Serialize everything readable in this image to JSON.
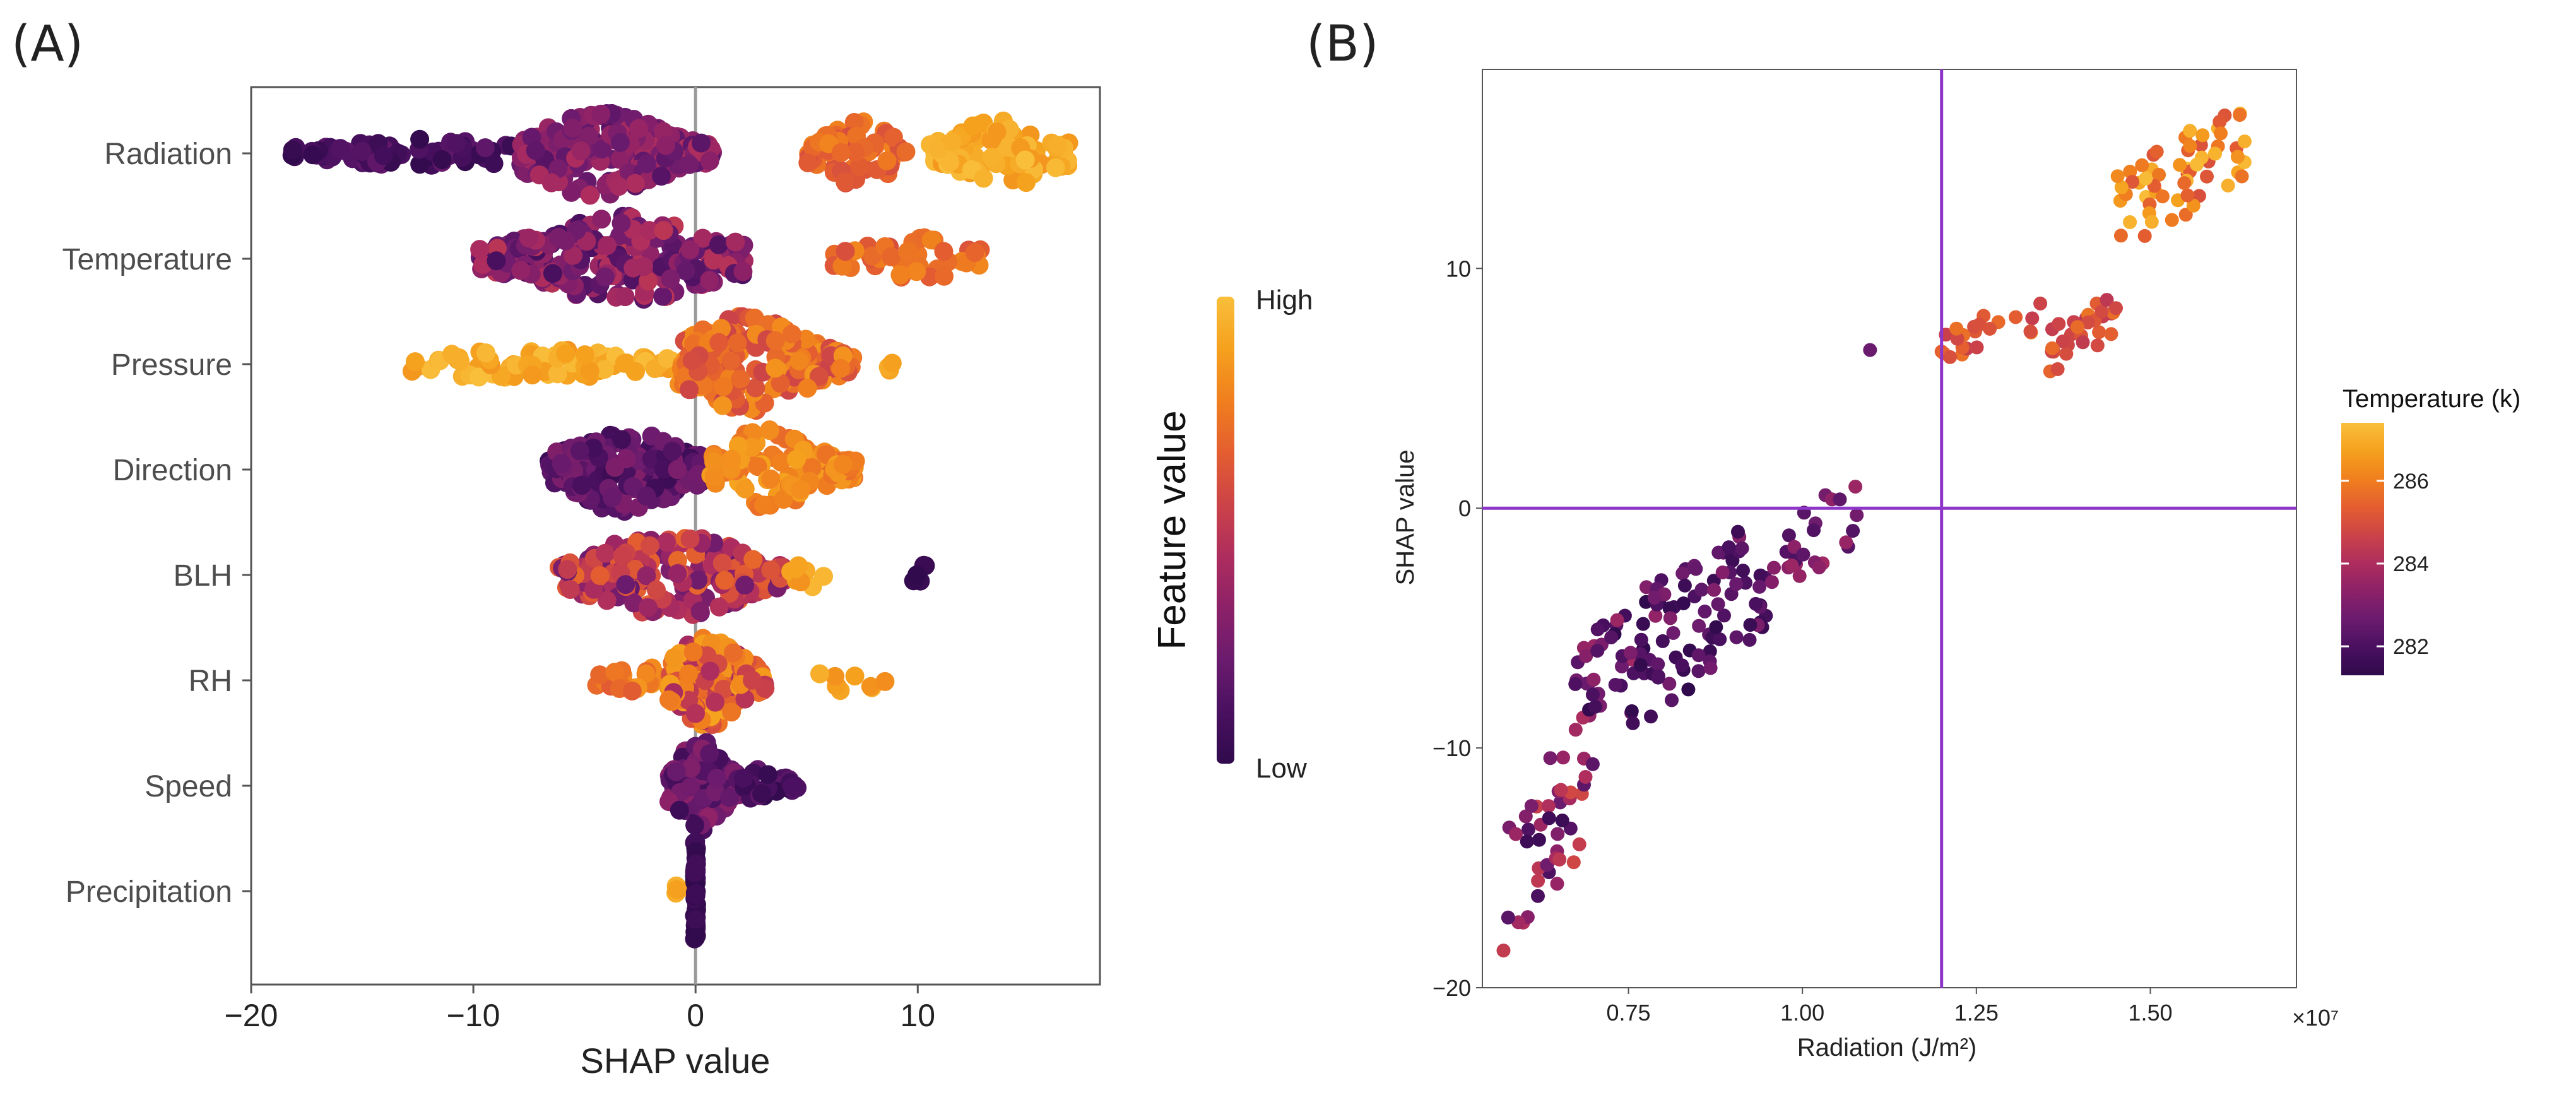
{
  "panels": {
    "a_label": "(A)",
    "b_label": "(B)"
  },
  "colors": {
    "ramp": [
      "#300a4c",
      "#4a1060",
      "#6b1b6e",
      "#8c2168",
      "#ae2d5e",
      "#cc4348",
      "#e45e30",
      "#f07f1e",
      "#f5a11e",
      "#f9bf3b"
    ],
    "guide_line": "#8d36c9",
    "zero_line": "#9a9a9a",
    "frame": "#555555"
  },
  "colorbar_a": {
    "title": "Feature value",
    "high": "High",
    "low": "Low"
  },
  "legend_b": {
    "title": "Temperature (k)",
    "ticks": [
      282,
      284,
      286
    ],
    "range": [
      281.3,
      287.4
    ]
  },
  "chart_data": [
    {
      "type": "scatter",
      "subtype": "beeswarm",
      "title": "",
      "xlabel": "SHAP value",
      "ylabel": "",
      "xlim": [
        -20,
        18.2
      ],
      "xticks": [
        -20,
        -10,
        0,
        10
      ],
      "xtick_labels": [
        "−20",
        "−10",
        "0",
        "10"
      ],
      "features": [
        "Radiation",
        "Temperature",
        "Pressure",
        "Direction",
        "BLH",
        "RH",
        "Speed",
        "Precipitation"
      ],
      "zero_line": true,
      "series": [
        {
          "feature": "Radiation",
          "clusters": [
            {
              "from": -18.2,
              "to": -8.2,
              "center": -12,
              "spread": 0.18,
              "color_from": 0.0,
              "color_to": 0.2,
              "count": 70
            },
            {
              "from": -7.9,
              "to": 0.8,
              "center": -4.5,
              "spread": 0.75,
              "color_from": 0.15,
              "color_to": 0.45,
              "count": 230
            },
            {
              "from": 5.0,
              "to": 9.5,
              "center": 7.3,
              "spread": 0.55,
              "color_from": 0.6,
              "color_to": 0.8,
              "count": 70
            },
            {
              "from": 10.5,
              "to": 16.8,
              "center": 13.8,
              "spread": 0.6,
              "color_from": 0.85,
              "color_to": 1.0,
              "count": 90
            }
          ]
        },
        {
          "feature": "Temperature",
          "clusters": [
            {
              "from": -9.8,
              "to": 2.2,
              "center": -3.2,
              "spread": 0.75,
              "color_from": 0.1,
              "color_to": 0.5,
              "count": 240
            },
            {
              "from": 6.2,
              "to": 13.0,
              "center": 10.0,
              "spread": 0.35,
              "color_from": 0.6,
              "color_to": 0.8,
              "count": 45
            }
          ]
        },
        {
          "feature": "Pressure",
          "clusters": [
            {
              "from": -13.0,
              "to": -0.8,
              "center": -8,
              "spread": 0.22,
              "color_from": 0.85,
              "color_to": 1.0,
              "count": 80
            },
            {
              "from": -0.8,
              "to": 7.2,
              "center": 2.3,
              "spread": 0.85,
              "color_from": 0.55,
              "color_to": 0.85,
              "count": 220
            },
            {
              "from": 8.5,
              "to": 9.2,
              "center": 8.8,
              "spread": 0.05,
              "color_from": 0.85,
              "color_to": 0.95,
              "count": 3
            }
          ]
        },
        {
          "feature": "Direction",
          "clusters": [
            {
              "from": -6.6,
              "to": 0.6,
              "center": -3.2,
              "spread": 0.75,
              "color_from": 0.05,
              "color_to": 0.3,
              "count": 190
            },
            {
              "from": 0.6,
              "to": 7.2,
              "center": 3.2,
              "spread": 0.7,
              "color_from": 0.7,
              "color_to": 0.9,
              "count": 110
            }
          ]
        },
        {
          "feature": "BLH",
          "clusters": [
            {
              "from": -6.2,
              "to": 4.0,
              "center": -1.2,
              "spread": 0.75,
              "color_from": 0.2,
              "color_to": 0.7,
              "count": 240
            },
            {
              "from": 4.2,
              "to": 6.2,
              "center": 5.2,
              "spread": 0.18,
              "color_from": 0.8,
              "color_to": 1.0,
              "count": 8
            },
            {
              "from": 9.8,
              "to": 10.6,
              "center": 10.2,
              "spread": 0.1,
              "color_from": 0.0,
              "color_to": 0.05,
              "count": 5
            }
          ]
        },
        {
          "feature": "RH",
          "clusters": [
            {
              "from": -4.6,
              "to": -1.2,
              "center": -2.5,
              "spread": 0.18,
              "color_from": 0.65,
              "color_to": 0.85,
              "count": 22
            },
            {
              "from": -1.2,
              "to": 3.2,
              "center": 0.6,
              "spread": 0.8,
              "color_from": 0.4,
              "color_to": 0.9,
              "count": 170
            },
            {
              "from": 5.5,
              "to": 8.8,
              "center": 7.0,
              "spread": 0.12,
              "color_from": 0.8,
              "color_to": 0.95,
              "count": 9
            }
          ]
        },
        {
          "feature": "Speed",
          "clusters": [
            {
              "from": -1.2,
              "to": 2.0,
              "center": 0.2,
              "spread": 0.8,
              "color_from": 0.05,
              "color_to": 0.35,
              "count": 120
            },
            {
              "from": 2.0,
              "to": 4.6,
              "center": 3.0,
              "spread": 0.25,
              "color_from": 0.0,
              "color_to": 0.2,
              "count": 30
            }
          ]
        },
        {
          "feature": "Precipitation",
          "clusters": [
            {
              "from": -0.9,
              "to": 0.0,
              "center": -0.4,
              "spread": 0.05,
              "color_from": 0.85,
              "color_to": 0.95,
              "count": 6
            },
            {
              "from": -0.05,
              "to": 0.05,
              "center": 0.0,
              "spread": 1.1,
              "color_from": 0.0,
              "color_to": 0.08,
              "count": 60
            }
          ]
        }
      ]
    },
    {
      "type": "scatter",
      "title": "",
      "xlabel": "Radiation (J/m²)",
      "ylabel": "SHAP value",
      "xlim": [
        0.54,
        1.71
      ],
      "ylim": [
        -20.0,
        18.3
      ],
      "xticks": [
        0.75,
        1.0,
        1.25,
        1.5
      ],
      "xtick_labels": [
        "0.75",
        "1.00",
        "1.25",
        "1.50"
      ],
      "x_multiplier": "×10⁷",
      "yticks": [
        -20,
        -10,
        0,
        10
      ],
      "ytick_labels": [
        "−20",
        "−10",
        "0",
        "10"
      ],
      "reference_lines": {
        "x": 1.2,
        "y": 0
      },
      "color_variable": "Temperature (k)",
      "clusters": [
        {
          "x": [
            0.57,
            0.7
          ],
          "y": [
            -18.5,
            -8.5
          ],
          "t": [
            281.6,
            284.8
          ],
          "count": 45
        },
        {
          "x": [
            0.67,
            0.8
          ],
          "y": [
            -9.0,
            -3.0
          ],
          "t": [
            281.3,
            283.8
          ],
          "count": 40
        },
        {
          "x": [
            0.75,
            0.95
          ],
          "y": [
            -9.0,
            -0.3
          ],
          "t": [
            281.3,
            283.2
          ],
          "count": 80
        },
        {
          "x": [
            0.95,
            1.09
          ],
          "y": [
            -3.6,
            1.3
          ],
          "t": [
            282.0,
            283.8
          ],
          "count": 25
        },
        {
          "x": [
            1.08,
            1.1
          ],
          "y": [
            6.4,
            6.8
          ],
          "t": [
            282.5,
            282.7
          ],
          "count": 1
        },
        {
          "x": [
            1.19,
            1.35
          ],
          "y": [
            6.2,
            8.8
          ],
          "t": [
            284.5,
            285.8
          ],
          "count": 22
        },
        {
          "x": [
            1.35,
            1.46
          ],
          "y": [
            5.5,
            9.0
          ],
          "t": [
            284.3,
            285.8
          ],
          "count": 30
        },
        {
          "x": [
            1.45,
            1.65
          ],
          "y": [
            11.0,
            16.8
          ],
          "t": [
            285.0,
            287.4
          ],
          "count": 60
        }
      ]
    }
  ]
}
